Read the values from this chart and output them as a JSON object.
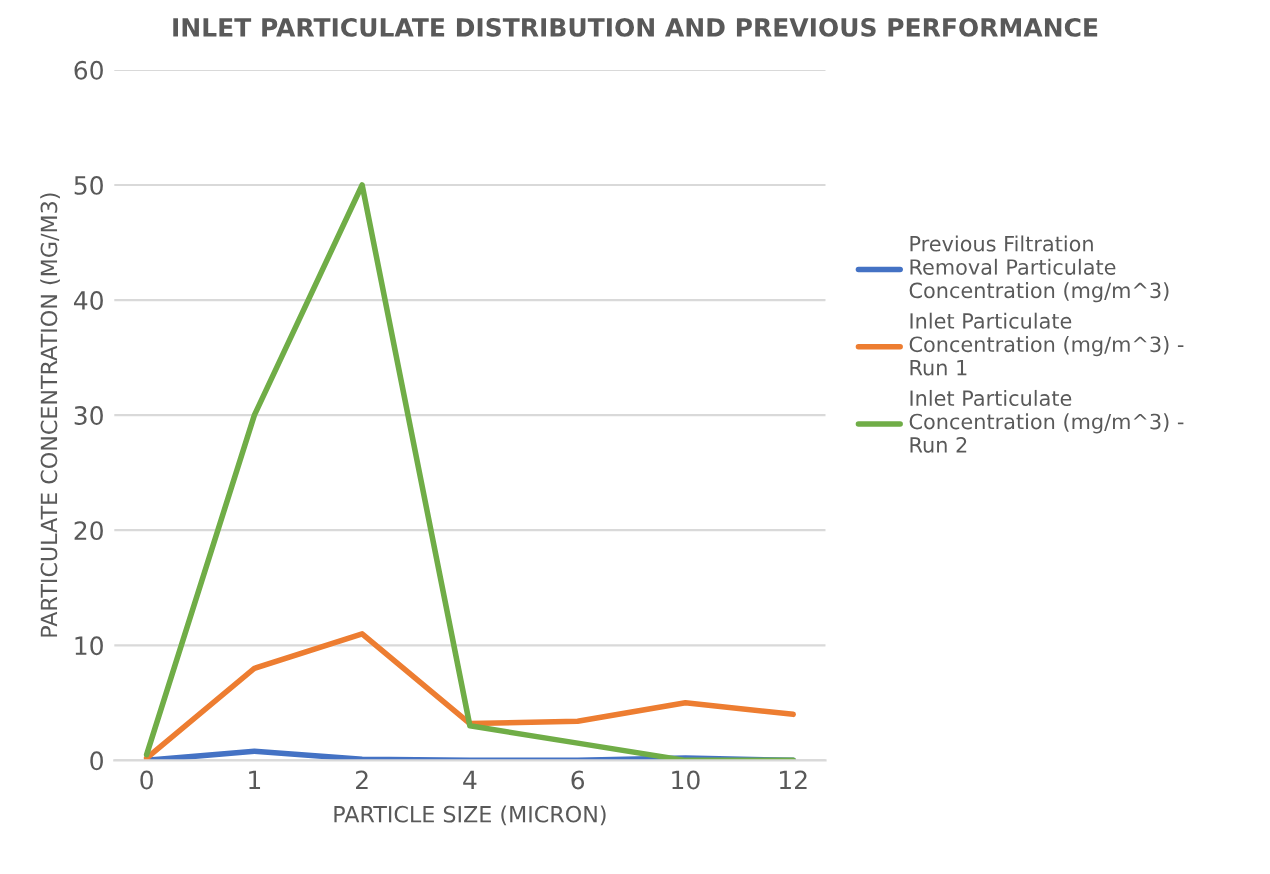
{
  "chart_data": {
    "type": "line",
    "title": "INLET PARTICULATE DISTRIBUTION AND PREVIOUS PERFORMANCE",
    "xlabel": "PARTICLE SIZE (MICRON)",
    "ylabel": "PARTICULATE CONCENTRATION (MG/M3)",
    "categories": [
      "0",
      "1",
      "2",
      "4",
      "6",
      "10",
      "12"
    ],
    "series": [
      {
        "name": "Previous Filtration Removal Particulate Concentration (mg/m^3)",
        "color": "#4472c4",
        "values": [
          0,
          0.8,
          0.1,
          0,
          0,
          0.2,
          0
        ]
      },
      {
        "name": "Inlet Particulate Concentration (mg/m^3) - Run 1",
        "color": "#ed7d31",
        "values": [
          0.2,
          8,
          11,
          3.2,
          3.4,
          5,
          4
        ]
      },
      {
        "name": "Inlet Particulate Concentration (mg/m^3) - Run 2",
        "color": "#70ad47",
        "values": [
          0.5,
          30,
          50,
          3,
          1.5,
          0,
          0
        ]
      }
    ],
    "ylim": [
      0,
      60
    ],
    "yticks": [
      0,
      10,
      20,
      30,
      40,
      50,
      60
    ],
    "grid": "y",
    "legend": "right",
    "marker": "none",
    "line_style": "solid"
  }
}
